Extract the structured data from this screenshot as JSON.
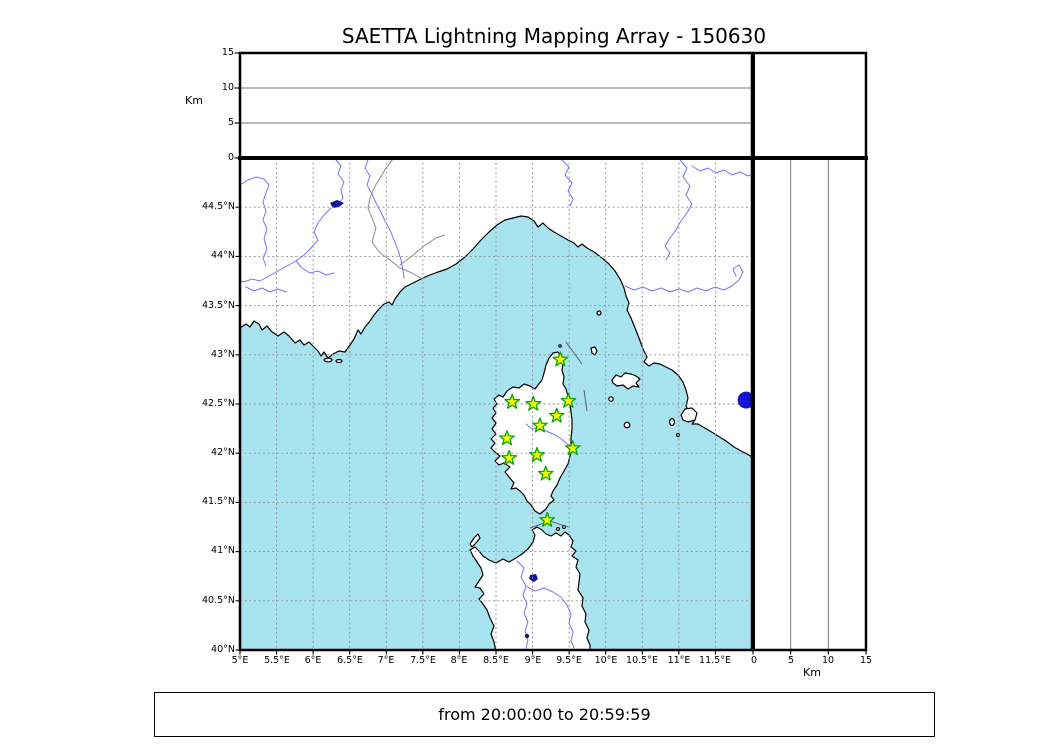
{
  "title": "SAETTA Lightning Mapping Array - 150630",
  "footer": "from 20:00:00 to 20:59:59",
  "altitude_axis": {
    "label": "Km",
    "ticks": [
      "0",
      "5",
      "10",
      "15"
    ],
    "range_km": [
      0,
      15
    ]
  },
  "right_axis": {
    "label": "Km",
    "ticks": [
      "0",
      "5",
      "10",
      "15"
    ],
    "range_km": [
      0,
      15
    ]
  },
  "map_axes": {
    "lon_range": [
      5,
      12
    ],
    "lat_range": [
      40,
      45
    ],
    "lat_tick_labels": [
      "44.5°N",
      "44°N",
      "43.5°N",
      "43°N",
      "42.5°N",
      "42°N",
      "41.5°N",
      "41°N",
      "40.5°N",
      "40°N"
    ],
    "lon_tick_labels": [
      "5°E",
      "5.5°E",
      "6°E",
      "6.5°E",
      "7°E",
      "7.5°E",
      "8°E",
      "8.5°E",
      "9°E",
      "9.5°E",
      "10°E",
      "10.5°E",
      "11°E",
      "11.5°E"
    ]
  },
  "stations": {
    "marker": "star",
    "count": 12,
    "points": [
      {
        "lon": 9.38,
        "lat": 42.95
      },
      {
        "lon": 8.72,
        "lat": 42.52
      },
      {
        "lon": 9.01,
        "lat": 42.5
      },
      {
        "lon": 9.49,
        "lat": 42.53
      },
      {
        "lon": 9.33,
        "lat": 42.38
      },
      {
        "lon": 9.1,
        "lat": 42.28
      },
      {
        "lon": 8.65,
        "lat": 42.15
      },
      {
        "lon": 9.55,
        "lat": 42.05
      },
      {
        "lon": 9.06,
        "lat": 41.98
      },
      {
        "lon": 8.68,
        "lat": 41.95
      },
      {
        "lon": 9.18,
        "lat": 41.79
      },
      {
        "lon": 9.2,
        "lat": 41.32
      }
    ]
  },
  "lake_markers": [
    {
      "name": "lake-bolsena",
      "lon": 11.92,
      "lat": 42.54,
      "radius_px": 8.5
    }
  ],
  "colors": {
    "sea": "#a8e4f0",
    "land": "#ffffff",
    "coast": "#000000",
    "river": "#7575f2",
    "grid": "#909090",
    "station_fill": "#fdff00",
    "station_edge": "#00a800",
    "lake": "#10109c",
    "bolsena": "#1414cf"
  }
}
